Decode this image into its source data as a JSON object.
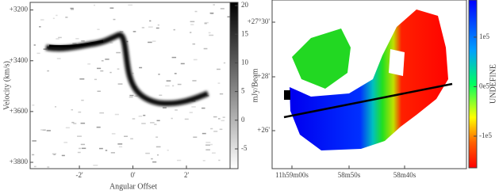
{
  "chart_data": [
    {
      "type": "image",
      "xlabel": "Angular Offset",
      "ylabel": "Velocity (km/s)",
      "xlim": [
        -3.84,
        3.63
      ],
      "ylim": [
        3825,
        3170
      ],
      "xticks": [
        {
          "value": -2,
          "label": "-2'"
        },
        {
          "value": 0,
          "label": "0'"
        },
        {
          "value": 2,
          "label": "2'"
        }
      ],
      "yticks": [
        {
          "value": 3200,
          "label": "+3200"
        },
        {
          "value": 3400,
          "label": "+3400"
        },
        {
          "value": 3600,
          "label": "+3600"
        },
        {
          "value": 3800,
          "label": "+3800"
        }
      ],
      "colorbar": {
        "label": "mJy/Beam",
        "lim": [
          -8.45,
          20.55
        ],
        "ticks": [
          20,
          15,
          10,
          5,
          0,
          -5
        ]
      }
    },
    {
      "type": "image",
      "xtick_labels": [
        "11h59m00s",
        "58m50s",
        "58m40s"
      ],
      "ytick_labels": [
        "+27°30'",
        "+28'",
        "+26'"
      ],
      "colorbar": {
        "label": "UNDEFINE",
        "lim": [
          -164000,
          175000
        ],
        "ticks": [
          {
            "value": 100000,
            "label": "1e5"
          },
          {
            "value": 0,
            "label": "0e5"
          },
          {
            "value": -100000,
            "label": "-1e5"
          }
        ]
      }
    }
  ]
}
